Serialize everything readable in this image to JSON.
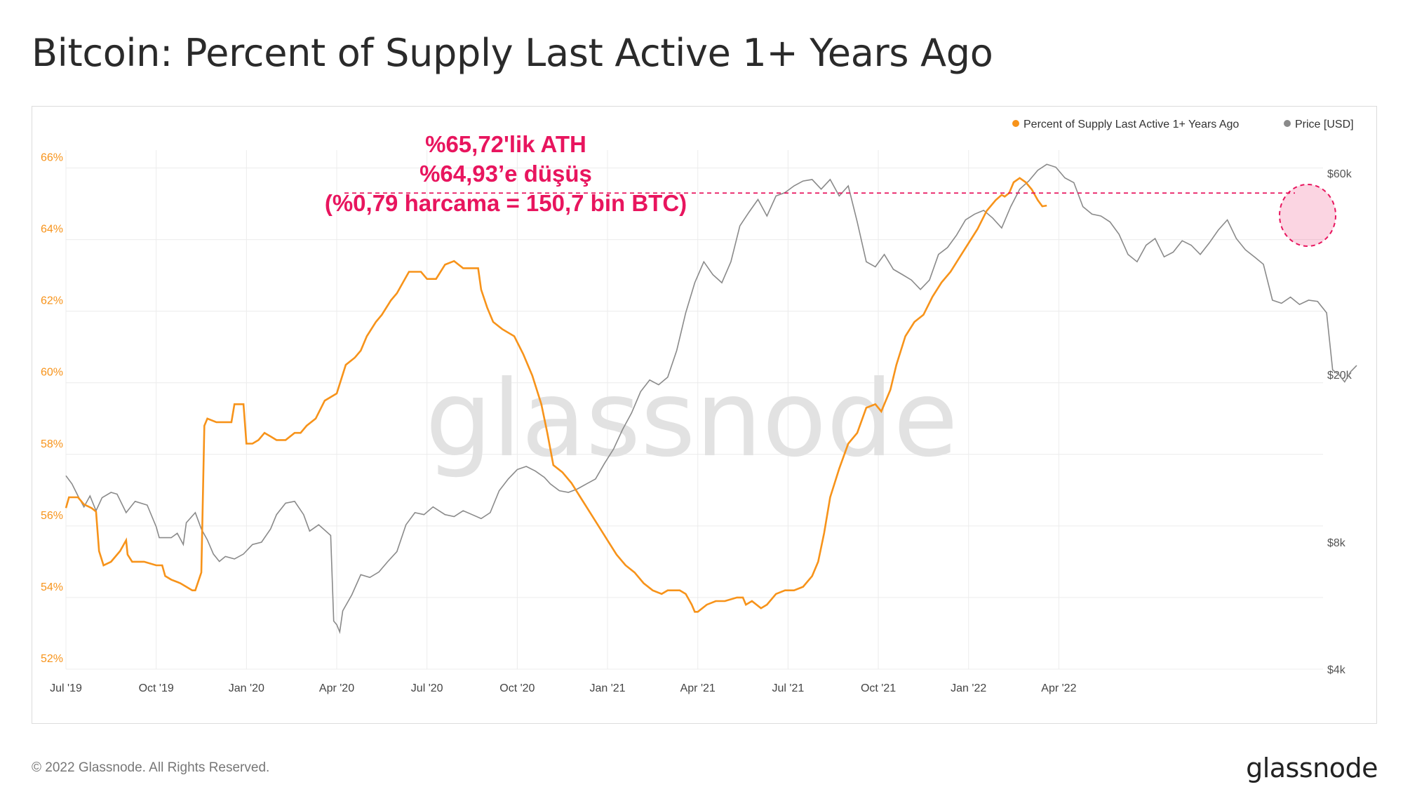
{
  "title": "Bitcoin: Percent of Supply Last Active 1+ Years Ago",
  "footer": "© 2022 Glassnode. All Rights Reserved.",
  "brand": "glassnode",
  "watermark": "glassnode",
  "colors": {
    "supply": "#f7931a",
    "price": "#8a8a8a",
    "annotation": "#e8155e",
    "grid": "#ececec"
  },
  "annotation": {
    "line1": "%65,72'lik ATH",
    "line2": "%64,93’e düşüş",
    "line3": "(%0,79 harcama = 150,7 bin BTC)",
    "reference_level": 65.3
  },
  "chart_data": {
    "type": "line",
    "title": "Bitcoin: Percent of Supply Last Active 1+ Years Ago",
    "legend": [
      {
        "name": "Percent of Supply Last Active 1+ Years Ago",
        "color": "#f7931a"
      },
      {
        "name": "Price [USD]",
        "color": "#8a8a8a"
      }
    ],
    "x_ticks": [
      "Jul '19",
      "Oct '19",
      "Jan '20",
      "Apr '20",
      "Jul '20",
      "Oct '20",
      "Jan '21",
      "Apr '21",
      "Jul '21",
      "Oct '21",
      "Jan '22",
      "Apr '22"
    ],
    "y_left": {
      "ticks": [
        "52%",
        "54%",
        "56%",
        "58%",
        "60%",
        "62%",
        "64%",
        "66%"
      ],
      "range": [
        52,
        66.5
      ]
    },
    "y_right": {
      "ticks": [
        "$4k",
        "$8k",
        "$20k",
        "$60k"
      ],
      "scale": "log"
    },
    "series": [
      {
        "name": "Percent of Supply Last Active 1+ Years Ago",
        "axis": "left",
        "points": [
          [
            0.0,
            56.5
          ],
          [
            0.1,
            56.8
          ],
          [
            0.4,
            56.8
          ],
          [
            0.6,
            56.6
          ],
          [
            0.85,
            56.5
          ],
          [
            1.0,
            56.4
          ],
          [
            1.1,
            55.3
          ],
          [
            1.25,
            54.9
          ],
          [
            1.5,
            55.0
          ],
          [
            1.8,
            55.3
          ],
          [
            2.0,
            55.6
          ],
          [
            2.05,
            55.2
          ],
          [
            2.2,
            55.0
          ],
          [
            2.6,
            55.0
          ],
          [
            3.0,
            54.9
          ],
          [
            3.2,
            54.9
          ],
          [
            3.3,
            54.6
          ],
          [
            3.5,
            54.5
          ],
          [
            3.8,
            54.4
          ],
          [
            4.0,
            54.3
          ],
          [
            4.2,
            54.2
          ],
          [
            4.3,
            54.2
          ],
          [
            4.5,
            54.7
          ],
          [
            4.6,
            58.8
          ],
          [
            4.7,
            59.0
          ],
          [
            5.0,
            58.9
          ],
          [
            5.5,
            58.9
          ],
          [
            5.6,
            59.4
          ],
          [
            5.9,
            59.4
          ],
          [
            6.0,
            58.3
          ],
          [
            6.2,
            58.3
          ],
          [
            6.4,
            58.4
          ],
          [
            6.6,
            58.6
          ],
          [
            6.8,
            58.5
          ],
          [
            7.0,
            58.4
          ],
          [
            7.3,
            58.4
          ],
          [
            7.6,
            58.6
          ],
          [
            7.8,
            58.6
          ],
          [
            8.0,
            58.8
          ],
          [
            8.3,
            59.0
          ],
          [
            8.6,
            59.5
          ],
          [
            9.0,
            59.7
          ],
          [
            9.3,
            60.5
          ],
          [
            9.6,
            60.7
          ],
          [
            9.8,
            60.9
          ],
          [
            10.0,
            61.3
          ],
          [
            10.3,
            61.7
          ],
          [
            10.5,
            61.9
          ],
          [
            10.8,
            62.3
          ],
          [
            11.0,
            62.5
          ],
          [
            11.2,
            62.8
          ],
          [
            11.4,
            63.1
          ],
          [
            11.8,
            63.1
          ],
          [
            12.0,
            62.9
          ],
          [
            12.3,
            62.9
          ],
          [
            12.6,
            63.3
          ],
          [
            12.9,
            63.4
          ],
          [
            13.2,
            63.2
          ],
          [
            13.5,
            63.2
          ],
          [
            13.7,
            63.2
          ],
          [
            13.8,
            62.6
          ],
          [
            14.0,
            62.1
          ],
          [
            14.2,
            61.7
          ],
          [
            14.5,
            61.5
          ],
          [
            14.9,
            61.3
          ],
          [
            15.2,
            60.8
          ],
          [
            15.5,
            60.2
          ],
          [
            15.8,
            59.4
          ],
          [
            16.0,
            58.6
          ],
          [
            16.2,
            57.7
          ],
          [
            16.5,
            57.5
          ],
          [
            16.8,
            57.2
          ],
          [
            17.1,
            56.8
          ],
          [
            17.4,
            56.4
          ],
          [
            17.7,
            56.0
          ],
          [
            18.0,
            55.6
          ],
          [
            18.3,
            55.2
          ],
          [
            18.6,
            54.9
          ],
          [
            18.9,
            54.7
          ],
          [
            19.2,
            54.4
          ],
          [
            19.5,
            54.2
          ],
          [
            19.8,
            54.1
          ],
          [
            20.0,
            54.2
          ],
          [
            20.4,
            54.2
          ],
          [
            20.6,
            54.1
          ],
          [
            20.8,
            53.8
          ],
          [
            20.9,
            53.6
          ],
          [
            21.0,
            53.6
          ],
          [
            21.3,
            53.8
          ],
          [
            21.6,
            53.9
          ],
          [
            21.9,
            53.9
          ],
          [
            22.3,
            54.0
          ],
          [
            22.5,
            54.0
          ],
          [
            22.6,
            53.8
          ],
          [
            22.8,
            53.9
          ],
          [
            23.1,
            53.7
          ],
          [
            23.3,
            53.8
          ],
          [
            23.6,
            54.1
          ],
          [
            23.9,
            54.2
          ],
          [
            24.2,
            54.2
          ],
          [
            24.5,
            54.3
          ],
          [
            24.8,
            54.6
          ],
          [
            25.0,
            55.0
          ],
          [
            25.2,
            55.8
          ],
          [
            25.4,
            56.8
          ],
          [
            25.7,
            57.6
          ],
          [
            26.0,
            58.3
          ],
          [
            26.3,
            58.6
          ],
          [
            26.6,
            59.3
          ],
          [
            26.9,
            59.4
          ],
          [
            27.1,
            59.2
          ],
          [
            27.4,
            59.8
          ],
          [
            27.6,
            60.5
          ],
          [
            27.9,
            61.3
          ],
          [
            28.2,
            61.7
          ],
          [
            28.5,
            61.9
          ],
          [
            28.8,
            62.4
          ],
          [
            29.1,
            62.8
          ],
          [
            29.4,
            63.1
          ],
          [
            29.7,
            63.5
          ],
          [
            30.0,
            63.9
          ],
          [
            30.3,
            64.3
          ],
          [
            30.6,
            64.8
          ],
          [
            30.9,
            65.1
          ],
          [
            31.1,
            65.25
          ],
          [
            31.2,
            65.2
          ],
          [
            31.35,
            65.3
          ],
          [
            31.5,
            65.6
          ],
          [
            31.7,
            65.72
          ],
          [
            31.9,
            65.6
          ],
          [
            32.1,
            65.4
          ],
          [
            32.3,
            65.1
          ],
          [
            32.45,
            64.93
          ],
          [
            32.6,
            64.95
          ]
        ]
      },
      {
        "name": "Price [USD]",
        "axis": "right",
        "points": [
          [
            0.0,
            11500
          ],
          [
            0.2,
            11000
          ],
          [
            0.4,
            10300
          ],
          [
            0.6,
            9700
          ],
          [
            0.8,
            10300
          ],
          [
            1.0,
            9500
          ],
          [
            1.2,
            10200
          ],
          [
            1.5,
            10500
          ],
          [
            1.7,
            10400
          ],
          [
            2.0,
            9400
          ],
          [
            2.3,
            10000
          ],
          [
            2.7,
            9800
          ],
          [
            3.0,
            8700
          ],
          [
            3.1,
            8200
          ],
          [
            3.5,
            8200
          ],
          [
            3.7,
            8400
          ],
          [
            3.9,
            7900
          ],
          [
            4.0,
            8900
          ],
          [
            4.3,
            9400
          ],
          [
            4.5,
            8600
          ],
          [
            4.7,
            8100
          ],
          [
            4.9,
            7500
          ],
          [
            5.1,
            7200
          ],
          [
            5.3,
            7400
          ],
          [
            5.6,
            7300
          ],
          [
            5.9,
            7500
          ],
          [
            6.2,
            7900
          ],
          [
            6.5,
            8000
          ],
          [
            6.8,
            8600
          ],
          [
            7.0,
            9300
          ],
          [
            7.3,
            9900
          ],
          [
            7.6,
            10000
          ],
          [
            7.9,
            9300
          ],
          [
            8.1,
            8500
          ],
          [
            8.4,
            8800
          ],
          [
            8.8,
            8300
          ],
          [
            8.9,
            5200
          ],
          [
            9.0,
            5100
          ],
          [
            9.1,
            4900
          ],
          [
            9.2,
            5500
          ],
          [
            9.5,
            6000
          ],
          [
            9.8,
            6700
          ],
          [
            10.1,
            6600
          ],
          [
            10.4,
            6800
          ],
          [
            10.7,
            7200
          ],
          [
            11.0,
            7600
          ],
          [
            11.3,
            8800
          ],
          [
            11.6,
            9400
          ],
          [
            11.9,
            9300
          ],
          [
            12.2,
            9700
          ],
          [
            12.6,
            9300
          ],
          [
            12.9,
            9200
          ],
          [
            13.2,
            9500
          ],
          [
            13.5,
            9300
          ],
          [
            13.8,
            9100
          ],
          [
            14.1,
            9400
          ],
          [
            14.4,
            10600
          ],
          [
            14.7,
            11300
          ],
          [
            15.0,
            11900
          ],
          [
            15.3,
            12100
          ],
          [
            15.6,
            11800
          ],
          [
            15.9,
            11400
          ],
          [
            16.1,
            11000
          ],
          [
            16.4,
            10600
          ],
          [
            16.7,
            10500
          ],
          [
            17.0,
            10700
          ],
          [
            17.3,
            11000
          ],
          [
            17.6,
            11300
          ],
          [
            17.9,
            12300
          ],
          [
            18.2,
            13300
          ],
          [
            18.5,
            14800
          ],
          [
            18.8,
            16200
          ],
          [
            19.1,
            18200
          ],
          [
            19.4,
            19400
          ],
          [
            19.7,
            18900
          ],
          [
            20.0,
            19700
          ],
          [
            20.3,
            22800
          ],
          [
            20.6,
            28000
          ],
          [
            20.9,
            33000
          ],
          [
            21.2,
            37000
          ],
          [
            21.5,
            34500
          ],
          [
            21.8,
            33000
          ],
          [
            22.1,
            37000
          ],
          [
            22.4,
            45000
          ],
          [
            22.7,
            48500
          ],
          [
            23.0,
            52000
          ],
          [
            23.3,
            47500
          ],
          [
            23.6,
            53000
          ],
          [
            23.9,
            54000
          ],
          [
            24.2,
            56000
          ],
          [
            24.5,
            57500
          ],
          [
            24.8,
            58000
          ],
          [
            25.1,
            55000
          ],
          [
            25.4,
            58000
          ],
          [
            25.7,
            53000
          ],
          [
            26.0,
            56000
          ],
          [
            26.3,
            46000
          ],
          [
            26.6,
            37000
          ],
          [
            26.9,
            36000
          ],
          [
            27.2,
            38500
          ],
          [
            27.5,
            35500
          ],
          [
            27.8,
            34500
          ],
          [
            28.1,
            33500
          ],
          [
            28.4,
            31800
          ],
          [
            28.7,
            33500
          ],
          [
            29.0,
            38500
          ],
          [
            29.3,
            40000
          ],
          [
            29.6,
            42800
          ],
          [
            29.9,
            46500
          ],
          [
            30.2,
            48000
          ],
          [
            30.5,
            49000
          ],
          [
            30.8,
            47000
          ],
          [
            31.1,
            44500
          ],
          [
            31.4,
            50000
          ],
          [
            31.7,
            55000
          ],
          [
            32.0,
            57500
          ],
          [
            32.3,
            61000
          ],
          [
            32.6,
            63000
          ],
          [
            32.9,
            62000
          ],
          [
            33.2,
            58500
          ],
          [
            33.5,
            57000
          ],
          [
            33.8,
            50000
          ],
          [
            34.1,
            48000
          ],
          [
            34.4,
            47500
          ],
          [
            34.7,
            46000
          ],
          [
            35.0,
            43000
          ],
          [
            35.3,
            38500
          ],
          [
            35.6,
            37000
          ],
          [
            35.9,
            40500
          ],
          [
            36.2,
            42000
          ],
          [
            36.5,
            38000
          ],
          [
            36.8,
            39000
          ],
          [
            37.1,
            41500
          ],
          [
            37.4,
            40500
          ],
          [
            37.7,
            38500
          ],
          [
            38.0,
            41000
          ],
          [
            38.3,
            44000
          ],
          [
            38.6,
            46500
          ],
          [
            38.9,
            42000
          ],
          [
            39.2,
            39500
          ],
          [
            39.5,
            38000
          ],
          [
            39.8,
            36500
          ],
          [
            40.1,
            30000
          ],
          [
            40.4,
            29500
          ],
          [
            40.7,
            30500
          ],
          [
            41.0,
            29300
          ],
          [
            41.3,
            30000
          ],
          [
            41.6,
            29800
          ],
          [
            41.9,
            28000
          ],
          [
            42.1,
            20500
          ],
          [
            42.3,
            20000
          ],
          [
            42.5,
            19200
          ],
          [
            42.7,
            20300
          ],
          [
            42.9,
            21000
          ]
        ]
      }
    ]
  }
}
